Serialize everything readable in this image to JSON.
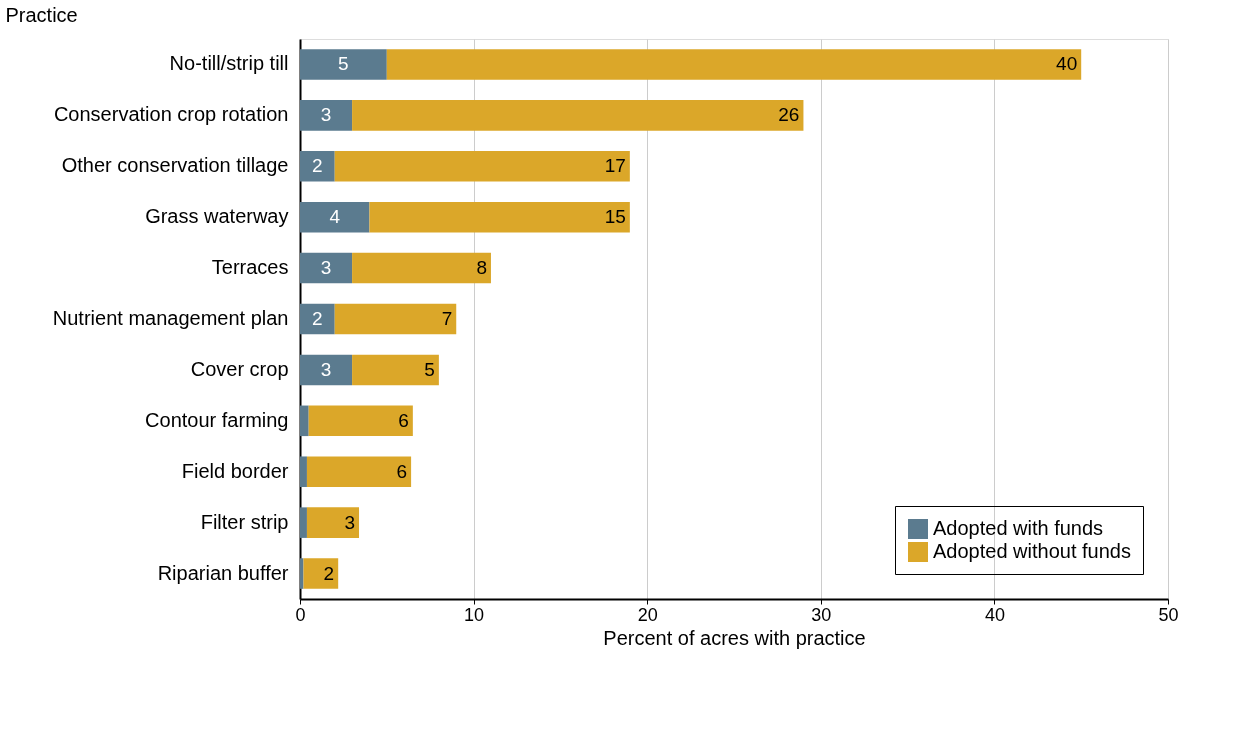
{
  "chart_data": {
    "type": "bar",
    "orientation": "horizontal",
    "stacked": true,
    "categories": [
      "No-till/strip till",
      "Conservation crop rotation",
      "Other conservation tillage",
      "Grass waterway",
      "Terraces",
      "Nutrient management plan",
      "Cover crop",
      "Contour farming",
      "Field border",
      "Filter strip",
      "Riparian buffer"
    ],
    "series": [
      {
        "name": "Adopted with funds",
        "color": "#5b7b8f",
        "values": [
          5,
          3,
          2,
          4,
          3,
          2,
          3,
          0.5,
          0.4,
          0.4,
          0.2
        ],
        "value_labels": [
          "5",
          "3",
          "2",
          "4",
          "3",
          "2",
          "3",
          null,
          null,
          null,
          null
        ]
      },
      {
        "name": "Adopted without funds",
        "color": "#dba729",
        "values": [
          40,
          26,
          17,
          15,
          8,
          7,
          5,
          6,
          6,
          3,
          2
        ],
        "value_labels": [
          "40",
          "26",
          "17",
          "15",
          "8",
          "7",
          "5",
          "6",
          "6",
          "3",
          "2"
        ]
      }
    ],
    "xlabel": "Percent of acres with practice",
    "ylabel": "Practice",
    "xlim": [
      0,
      50
    ],
    "xticks": [
      0,
      10,
      20,
      30,
      40,
      50
    ],
    "grid": "x",
    "legend": "bottom right"
  }
}
